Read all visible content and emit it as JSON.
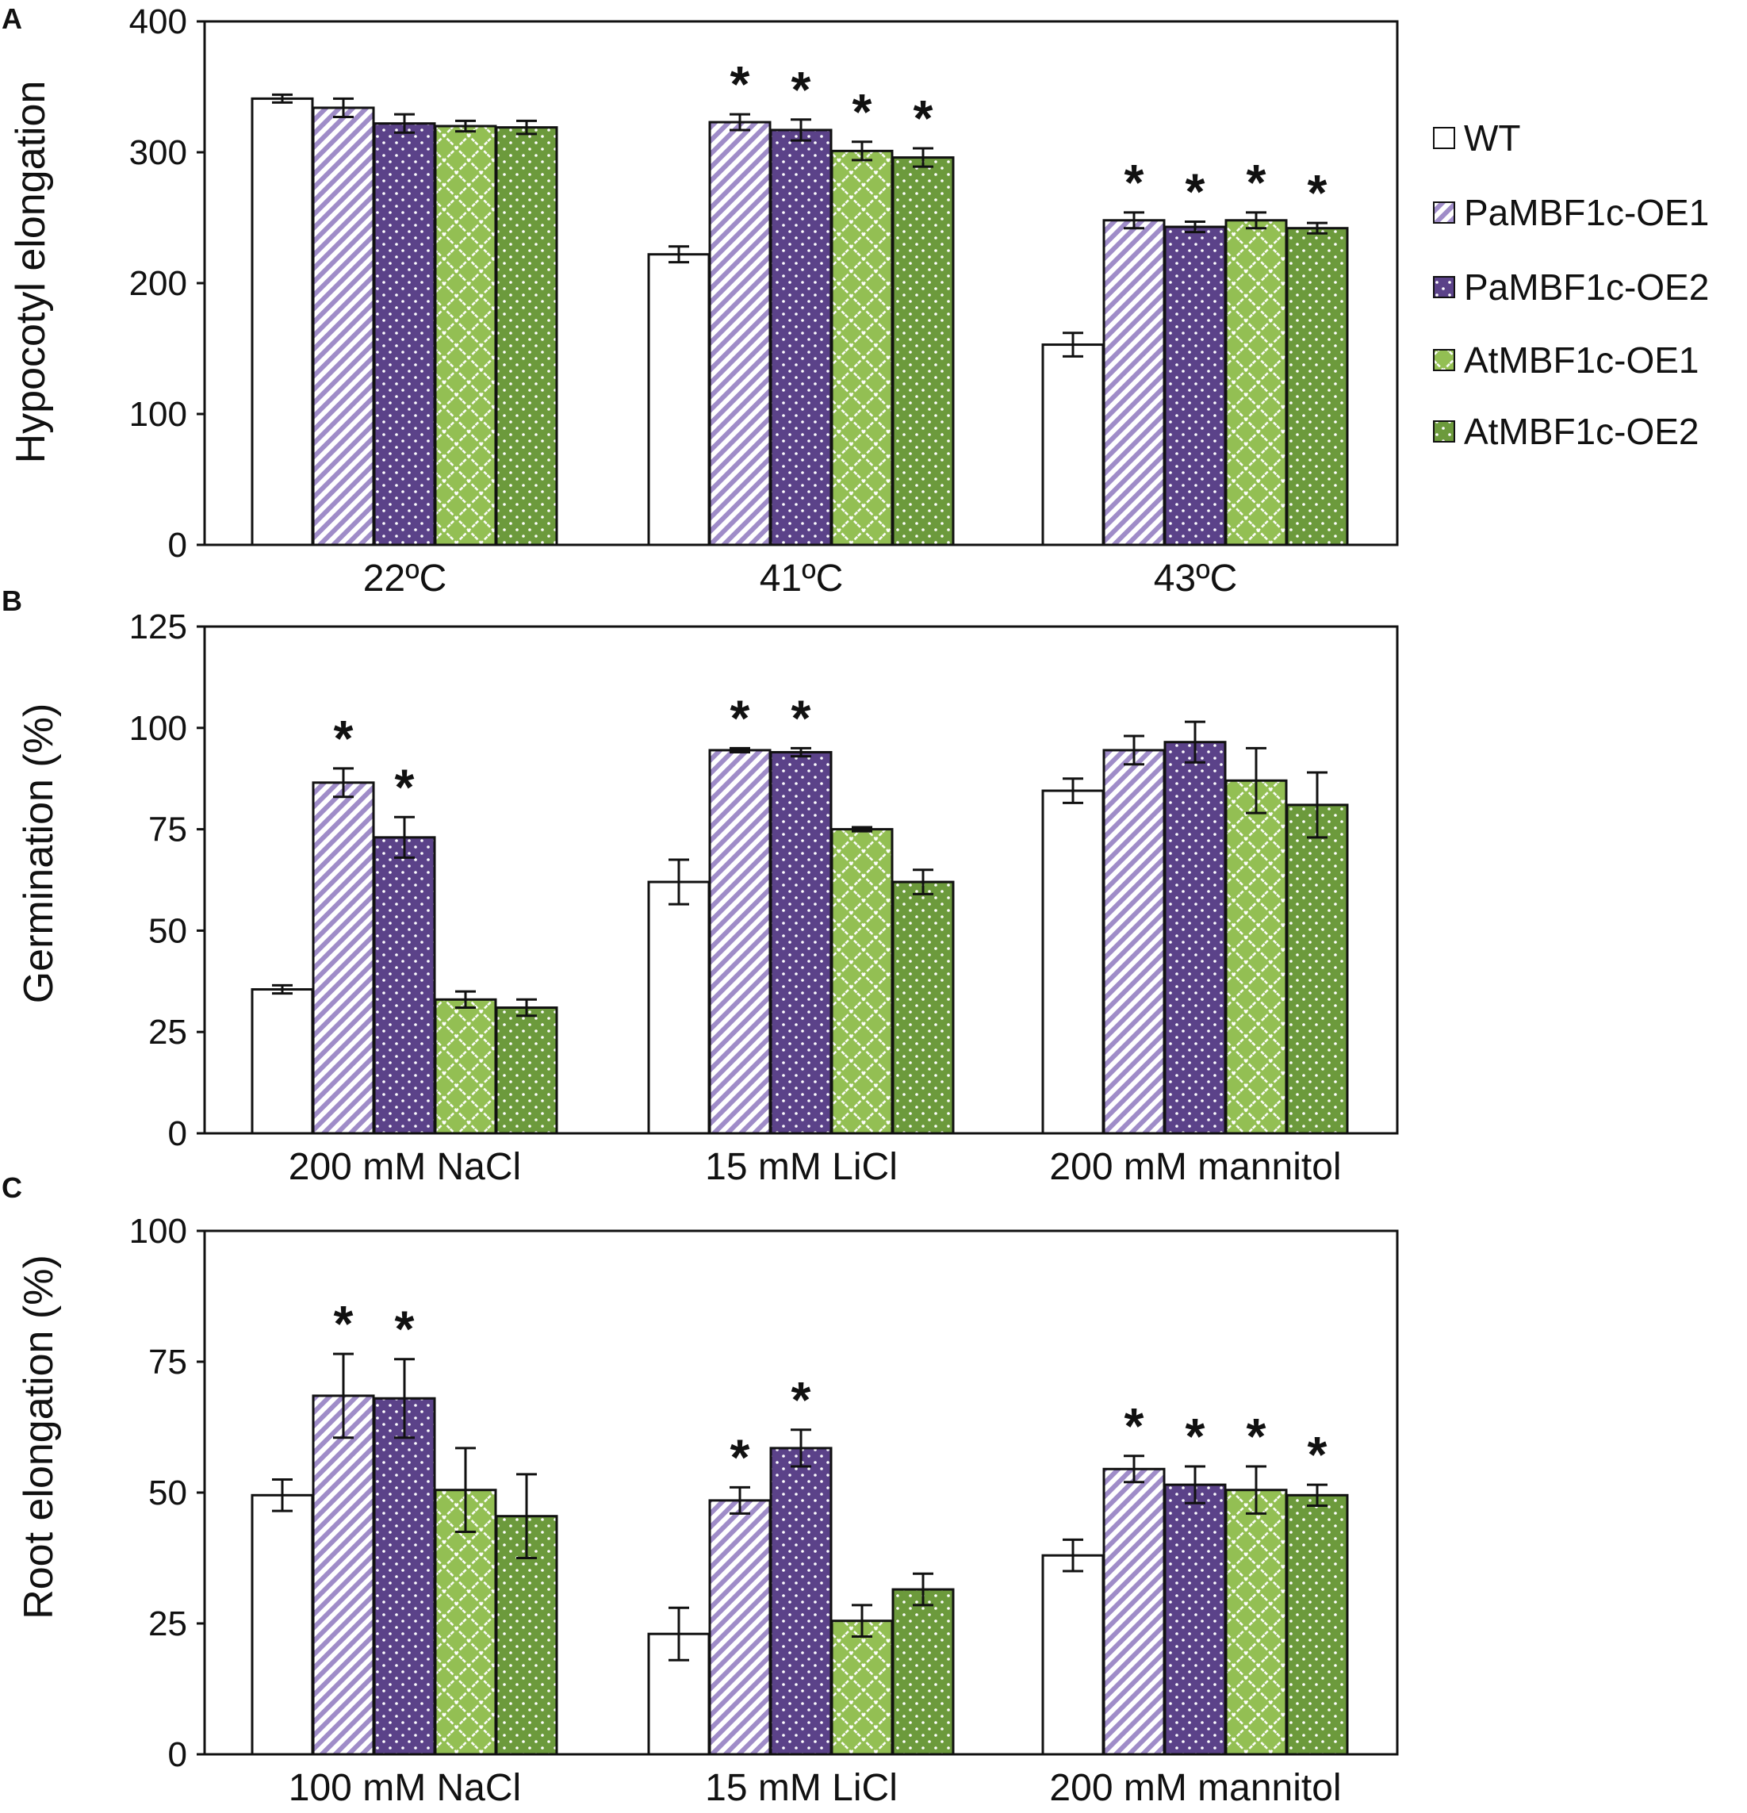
{
  "legend": {
    "series": [
      {
        "name": "WT",
        "pattern": "plain-white"
      },
      {
        "name": "PaMBF1c-OE1",
        "pattern": "lavender-diagonal"
      },
      {
        "name": "PaMBF1c-OE2",
        "pattern": "purple-dots"
      },
      {
        "name": "AtMBF1c-OE1",
        "pattern": "green-lattice"
      },
      {
        "name": "AtMBF1c-OE2",
        "pattern": "darkgreen-dots"
      }
    ]
  },
  "colors": {
    "wt": "#ffffff",
    "pa1_bg": "#ffffff",
    "pa1_stripe": "#9f8cc8",
    "pa2": "#5b4289",
    "at1": "#93bf53",
    "at2": "#6c9a3c",
    "axis": "#111111"
  },
  "chart_data": [
    {
      "type": "bar",
      "panel": "A",
      "ylabel": "Hypocotyl elongation",
      "categories": [
        "22ºC",
        "41ºC",
        "43ºC"
      ],
      "ylim": [
        0,
        400
      ],
      "yticks": [
        0,
        100,
        200,
        300,
        400
      ],
      "series": [
        {
          "name": "WT",
          "values": [
            341,
            222,
            153
          ],
          "errors": [
            3,
            6,
            9
          ],
          "sig": [
            false,
            false,
            false
          ]
        },
        {
          "name": "PaMBF1c-OE1",
          "values": [
            334,
            323,
            248
          ],
          "errors": [
            7,
            6,
            6
          ],
          "sig": [
            false,
            true,
            true
          ]
        },
        {
          "name": "PaMBF1c-OE2",
          "values": [
            322,
            317,
            243
          ],
          "errors": [
            7,
            8,
            4
          ],
          "sig": [
            false,
            true,
            true
          ]
        },
        {
          "name": "AtMBF1c-OE1",
          "values": [
            320,
            301,
            248
          ],
          "errors": [
            4,
            7,
            6
          ],
          "sig": [
            false,
            true,
            true
          ]
        },
        {
          "name": "AtMBF1c-OE2",
          "values": [
            319,
            296,
            242
          ],
          "errors": [
            5,
            7,
            4
          ],
          "sig": [
            false,
            true,
            true
          ]
        }
      ]
    },
    {
      "type": "bar",
      "panel": "B",
      "ylabel": "Germination (%)",
      "categories": [
        "200 mM NaCl",
        "15 mM LiCl",
        "200 mM mannitol"
      ],
      "ylim": [
        0,
        125
      ],
      "yticks": [
        0,
        25,
        50,
        75,
        100,
        125
      ],
      "series": [
        {
          "name": "WT",
          "values": [
            35.5,
            62,
            84.5
          ],
          "errors": [
            1,
            5.5,
            3
          ],
          "sig": [
            false,
            false,
            false
          ]
        },
        {
          "name": "PaMBF1c-OE1",
          "values": [
            86.5,
            94.5,
            94.5
          ],
          "errors": [
            3.5,
            0.5,
            3.5
          ],
          "sig": [
            true,
            true,
            false
          ]
        },
        {
          "name": "PaMBF1c-OE2",
          "values": [
            73,
            94,
            96.5
          ],
          "errors": [
            5,
            1,
            5
          ],
          "sig": [
            true,
            true,
            false
          ]
        },
        {
          "name": "AtMBF1c-OE1",
          "values": [
            33,
            75,
            87
          ],
          "errors": [
            2,
            0.5,
            8
          ],
          "sig": [
            false,
            false,
            false
          ]
        },
        {
          "name": "AtMBF1c-OE2",
          "values": [
            31,
            62,
            81
          ],
          "errors": [
            2,
            3,
            8
          ],
          "sig": [
            false,
            false,
            false
          ]
        }
      ]
    },
    {
      "type": "bar",
      "panel": "C",
      "ylabel": "Root elongation (%)",
      "categories": [
        "100 mM NaCl",
        "15 mM LiCl",
        "200 mM mannitol"
      ],
      "ylim": [
        0,
        100
      ],
      "yticks": [
        0,
        25,
        50,
        75,
        100
      ],
      "series": [
        {
          "name": "WT",
          "values": [
            49.5,
            23,
            38
          ],
          "errors": [
            3,
            5,
            3
          ],
          "sig": [
            false,
            false,
            false
          ]
        },
        {
          "name": "PaMBF1c-OE1",
          "values": [
            68.5,
            48.5,
            54.5
          ],
          "errors": [
            8,
            2.5,
            2.5
          ],
          "sig": [
            true,
            true,
            true
          ]
        },
        {
          "name": "PaMBF1c-OE2",
          "values": [
            68,
            58.5,
            51.5
          ],
          "errors": [
            7.5,
            3.5,
            3.5
          ],
          "sig": [
            true,
            true,
            true
          ]
        },
        {
          "name": "AtMBF1c-OE1",
          "values": [
            50.5,
            25.5,
            50.5
          ],
          "errors": [
            8,
            3,
            4.5
          ],
          "sig": [
            false,
            false,
            true
          ]
        },
        {
          "name": "AtMBF1c-OE2",
          "values": [
            45.5,
            31.5,
            49.5
          ],
          "errors": [
            8,
            3,
            2
          ],
          "sig": [
            false,
            false,
            true
          ]
        }
      ]
    }
  ],
  "labels": {
    "significance_marker": "*"
  }
}
